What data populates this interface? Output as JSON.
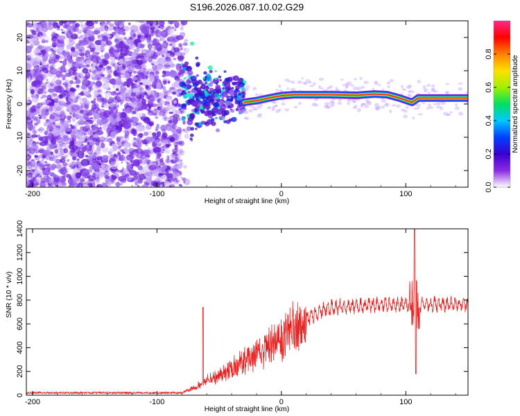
{
  "chart_data": [
    {
      "type": "heatmap",
      "title": "S196.2026.087.10.02.G29",
      "xlabel": "Height of straight line (km)",
      "ylabel": "Frequency (Hz)",
      "xlim": [
        -205,
        150
      ],
      "ylim": [
        -25,
        25
      ],
      "xticks": [
        -200,
        -100,
        0,
        100
      ],
      "yticks": [
        -20,
        -10,
        0,
        10,
        20
      ],
      "colorbar": {
        "label": "Normalized spectral amplitude",
        "range": [
          0,
          1
        ],
        "ticks": [
          0.0,
          0.2,
          0.4,
          0.6,
          0.8
        ],
        "tick_labels": [
          "0.0",
          "0.2",
          "0.4",
          "0.6",
          "0.8"
        ],
        "colors": [
          "#ffffff",
          "#8a2be2",
          "#3a00d0",
          "#0040ff",
          "#00c8ff",
          "#00e060",
          "#a0f000",
          "#ffe000",
          "#ff8000",
          "#ff0000",
          "#ff2a8a"
        ]
      },
      "noise_region_x": [
        -205,
        -80
      ],
      "transition_region_x": [
        -80,
        -30
      ],
      "signal_track": [
        {
          "x": -30,
          "freq": 0.5
        },
        {
          "x": -20,
          "freq": 1.0
        },
        {
          "x": -10,
          "freq": 1.8
        },
        {
          "x": 0,
          "freq": 2.5
        },
        {
          "x": 10,
          "freq": 2.8
        },
        {
          "x": 20,
          "freq": 2.8
        },
        {
          "x": 40,
          "freq": 2.8
        },
        {
          "x": 60,
          "freq": 2.6
        },
        {
          "x": 75,
          "freq": 3.0
        },
        {
          "x": 85,
          "freq": 2.8
        },
        {
          "x": 95,
          "freq": 1.8
        },
        {
          "x": 105,
          "freq": 0.5
        },
        {
          "x": 110,
          "freq": 1.8
        },
        {
          "x": 130,
          "freq": 1.8
        },
        {
          "x": 150,
          "freq": 1.8
        }
      ]
    },
    {
      "type": "line",
      "xlabel": "Height of straight line (km)",
      "ylabel": "SNR (10 * v/v)",
      "xlim": [
        -205,
        150
      ],
      "ylim": [
        0,
        1400
      ],
      "xticks": [
        -200,
        -100,
        0,
        100
      ],
      "yticks": [
        0,
        200,
        400,
        600,
        800,
        1000,
        1200,
        1400
      ],
      "series": [
        {
          "name": "SNR",
          "color": "#e82020",
          "baseline": [
            {
              "x": -205,
              "y": 20
            },
            {
              "x": -80,
              "y": 20
            },
            {
              "x": -70,
              "y": 60
            },
            {
              "x": -60,
              "y": 120
            },
            {
              "x": -50,
              "y": 150
            },
            {
              "x": -40,
              "y": 220
            },
            {
              "x": -30,
              "y": 270
            },
            {
              "x": -20,
              "y": 320
            },
            {
              "x": -10,
              "y": 390
            },
            {
              "x": 0,
              "y": 440
            },
            {
              "x": 10,
              "y": 540
            },
            {
              "x": 20,
              "y": 640
            },
            {
              "x": 30,
              "y": 700
            },
            {
              "x": 40,
              "y": 740
            },
            {
              "x": 60,
              "y": 750
            },
            {
              "x": 80,
              "y": 760
            },
            {
              "x": 100,
              "y": 760
            },
            {
              "x": 120,
              "y": 765
            },
            {
              "x": 150,
              "y": 765
            }
          ],
          "features": [
            {
              "x": -63,
              "y": 740,
              "kind": "spike"
            },
            {
              "x": 107,
              "y": 1400,
              "kind": "max"
            },
            {
              "x": 108,
              "y": 180,
              "kind": "min"
            }
          ]
        }
      ]
    }
  ]
}
